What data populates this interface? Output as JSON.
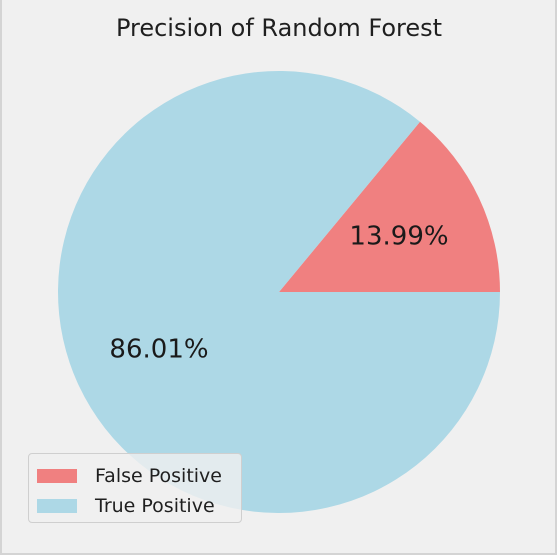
{
  "chart_data": {
    "type": "pie",
    "title": "Precision of Random Forest",
    "slices": [
      {
        "label": "False Positive",
        "value": 13.99,
        "display": "13.99%",
        "color": "#f08080"
      },
      {
        "label": "True Positive",
        "value": 86.01,
        "display": "86.01%",
        "color": "#add8e6"
      }
    ],
    "start_angle_deg": 0,
    "direction": "counterclockwise",
    "legend": {
      "placement": "lower-left",
      "entries": [
        "False Positive",
        "True Positive"
      ]
    }
  },
  "colors": {
    "figure_background": "#f0f0f0",
    "text": "#1f1f1f"
  }
}
